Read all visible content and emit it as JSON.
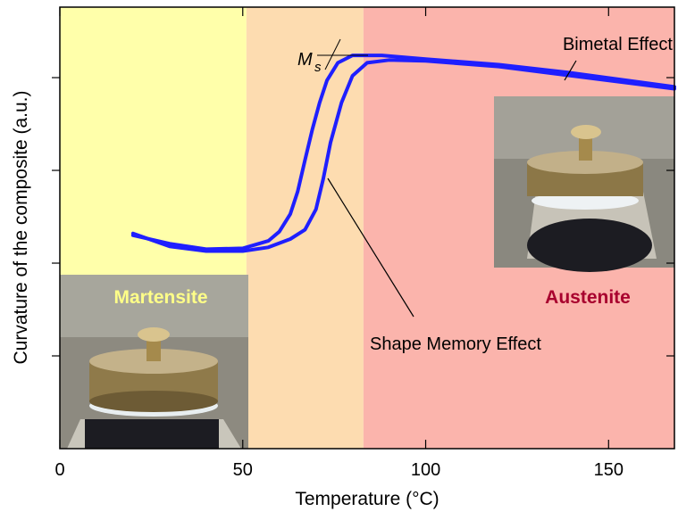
{
  "chart_data": {
    "type": "line",
    "x_label": "Temperature (°C)",
    "y_label": "Curvature of the composite (a.u.)",
    "xlim": [
      0,
      168
    ],
    "xticks": [
      0,
      50,
      100,
      150
    ],
    "ylim": [
      0,
      4.76
    ],
    "yticks": [
      1,
      2,
      3,
      4
    ],
    "regions": [
      {
        "from": 0,
        "to": 51,
        "color": "#ffffaa"
      },
      {
        "from": 51,
        "to": 83,
        "color": "#fddcb0"
      },
      {
        "from": 83,
        "to": 168,
        "color": "#fbb4ac"
      }
    ],
    "series": [
      {
        "color": "#1f1fff",
        "x": [
          20,
          30,
          40,
          50,
          57,
          63,
          67,
          70,
          72,
          74,
          77,
          80,
          84,
          90,
          100,
          120,
          140,
          168
        ],
        "values": [
          2.32,
          2.18,
          2.13,
          2.13,
          2.17,
          2.26,
          2.36,
          2.58,
          2.91,
          3.3,
          3.73,
          4.02,
          4.16,
          4.19,
          4.18,
          4.12,
          4.02,
          3.88
        ]
      },
      {
        "color": "#1f1fff",
        "x": [
          168,
          140,
          120,
          100,
          88,
          80,
          76,
          73,
          71,
          69,
          67,
          65,
          63,
          60,
          57,
          50,
          40,
          30,
          20
        ],
        "values": [
          3.9,
          4.05,
          4.14,
          4.2,
          4.24,
          4.24,
          4.16,
          3.97,
          3.73,
          3.44,
          3.11,
          2.77,
          2.53,
          2.34,
          2.24,
          2.16,
          2.15,
          2.21,
          2.3
        ]
      }
    ],
    "annotations": {
      "martensite": "Martensite",
      "austenite": "Austenite",
      "bimetal": "Bimetal Effect",
      "shape_memory": "Shape Memory Effect",
      "ms_main": "M",
      "ms_sub": "s"
    }
  }
}
